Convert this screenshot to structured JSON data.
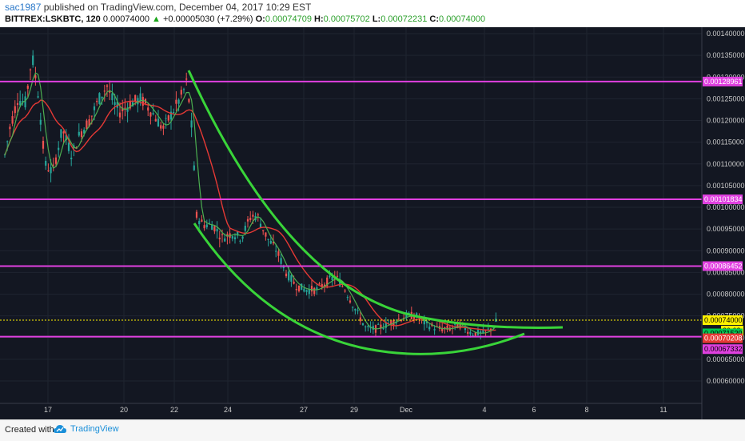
{
  "header": {
    "user": "sac1987",
    "published": "published on TradingView.com, December 04, 2017 10:29 EST",
    "symbol": "BITTREX:LSKBTC, 120",
    "last": "0.00074000",
    "change_arrow": "▲",
    "change": "+0.00005030 (+7.29%)",
    "o_label": "O:",
    "o": "0.00074709",
    "h_label": "H:",
    "h": "0.00075702",
    "l_label": "L:",
    "l": "0.00072231",
    "c_label": "C:",
    "c": "0.00074000"
  },
  "footer": {
    "created_with": "Created with",
    "brand": "TradingView"
  },
  "chart_data": {
    "type": "candlestick",
    "background": "#131722",
    "y_ticks": [
      "0.00140000",
      "0.00135000",
      "0.00130000",
      "0.00125000",
      "0.00120000",
      "0.00115000",
      "0.00110000",
      "0.00105000",
      "0.00100000",
      "0.00095000",
      "0.00090000",
      "0.00085000",
      "0.00080000",
      "0.00075000",
      "0.00070000",
      "0.00065000",
      "0.00060000"
    ],
    "x_ticks": [
      "17",
      "20",
      "22",
      "24",
      "27",
      "29",
      "Dec",
      "4",
      "6",
      "8",
      "11"
    ],
    "horizontal_levels": [
      {
        "value": "0.00128961",
        "color": "#e040e0"
      },
      {
        "value": "0.00101834",
        "color": "#e040e0"
      },
      {
        "value": "0.00086452",
        "color": "#e040e0"
      },
      {
        "value": "0.00070208",
        "color": "#e040e0"
      }
    ],
    "price_tags": [
      {
        "value": "0.00074000",
        "bg": "#fff200",
        "fg": "#000000"
      },
      {
        "value": "30:08",
        "bg": "#fff200",
        "fg": "#000000"
      },
      {
        "value": "0.00071520",
        "bg": "#00c853",
        "fg": "#000000"
      },
      {
        "value": "0.00070208",
        "bg": "#e53935",
        "fg": "#ffffff"
      },
      {
        "value": "0.00067332",
        "bg": "#e040e0",
        "fg": "#000000"
      }
    ],
    "colors": {
      "up": "#26a69a",
      "down": "#ef5350",
      "ma_fast": "#4caf50",
      "ma_slow": "#e53935",
      "trend": "#39d439",
      "last_line": "#fff200"
    }
  }
}
